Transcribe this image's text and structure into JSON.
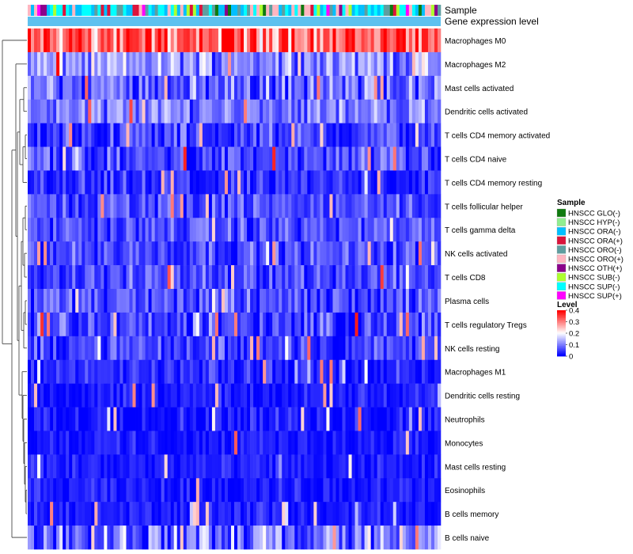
{
  "chart_data": {
    "type": "heatmap",
    "title": "",
    "annotation_rows": [
      "Sample",
      "Gene expression level"
    ],
    "rows": [
      "Macrophages M0",
      "Macrophages M2",
      "Mast cells activated",
      "Dendritic cells activated",
      "T cells CD4 memory activated",
      "T cells CD4 naive",
      "T cells CD4 memory resting",
      "T cells follicular helper",
      "T cells gamma delta",
      "NK cells activated",
      "T cells CD8",
      "Plasma cells",
      "T cells regulatory  Tregs",
      "NK cells resting",
      "Macrophages M1",
      "Dendritic cells resting",
      "Neutrophils",
      "Monocytes",
      "Mast cells resting",
      "Eosinophils",
      "B cells memory",
      "B cells naive"
    ],
    "row_mean_levels": [
      0.33,
      0.12,
      0.08,
      0.1,
      0.05,
      0.05,
      0.03,
      0.06,
      0.06,
      0.06,
      0.06,
      0.06,
      0.05,
      0.05,
      0.03,
      0.02,
      0.02,
      0.02,
      0.02,
      0.02,
      0.02,
      0.08
    ],
    "row_spread": [
      0.1,
      0.07,
      0.07,
      0.06,
      0.06,
      0.06,
      0.05,
      0.05,
      0.05,
      0.05,
      0.05,
      0.06,
      0.07,
      0.05,
      0.04,
      0.03,
      0.04,
      0.03,
      0.03,
      0.03,
      0.03,
      0.09
    ],
    "n_samples": 130,
    "level_colors": {
      "low": "#0000ff",
      "mid": "#ffffff",
      "high": "#ff0000"
    },
    "gene_expression_bar_color": "#5ec1ef",
    "sample_legend": {
      "title": "Sample",
      "items": [
        {
          "label": "HNSCC GLO(-)",
          "color": "#0f7a0f"
        },
        {
          "label": "HNSCC HYP(-)",
          "color": "#90ee90"
        },
        {
          "label": "HNSCC ORA(-)",
          "color": "#00bfff"
        },
        {
          "label": "HNSCC ORA(+)",
          "color": "#dc143c"
        },
        {
          "label": "HNSCC ORO(-)",
          "color": "#5f9ea0"
        },
        {
          "label": "HNSCC ORO(+)",
          "color": "#ffb6c1"
        },
        {
          "label": "HNSCC OTH(+)",
          "color": "#8b008b"
        },
        {
          "label": "HNSCC SUB(-)",
          "color": "#adff2f"
        },
        {
          "label": "HNSCC SUP(-)",
          "color": "#00ffff"
        },
        {
          "label": "HNSCC SUP(+)",
          "color": "#ff00ff"
        }
      ]
    },
    "level_legend": {
      "title": "Level",
      "ticks": [
        "0.4",
        "0.3",
        "0.2",
        "0.1",
        "0"
      ],
      "range": [
        0,
        0.4
      ]
    },
    "dendrogram": "row clustering tree on left side"
  }
}
